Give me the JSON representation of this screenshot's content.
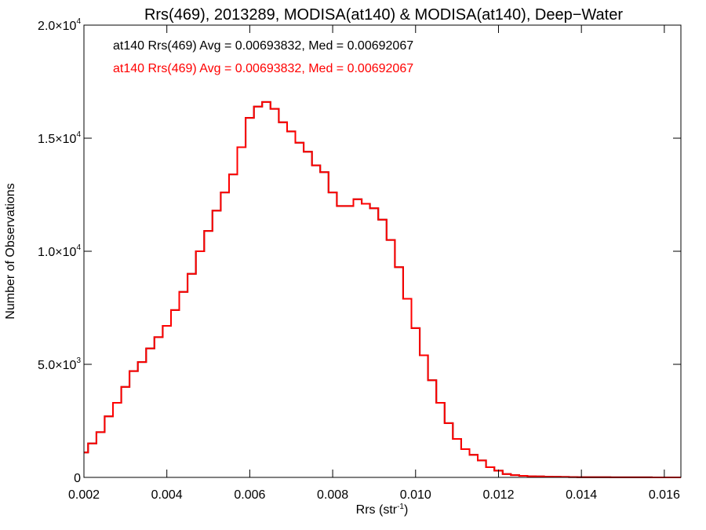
{
  "chart_data": {
    "type": "line",
    "title": "Rrs(469), 2013289, MODISA(at140) & MODISA(at140), Deep−Water",
    "xlabel": "Rrs (str",
    "xlabel_sup": "-1",
    "xlabel_end": ")",
    "ylabel": "Number of Observations",
    "xlim": [
      0.002,
      0.0164
    ],
    "ylim": [
      0,
      20000
    ],
    "xticks": [
      {
        "value": 0.002,
        "label": "0.002"
      },
      {
        "value": 0.004,
        "label": "0.004"
      },
      {
        "value": 0.006,
        "label": "0.006"
      },
      {
        "value": 0.008,
        "label": "0.008"
      },
      {
        "value": 0.01,
        "label": "0.010"
      },
      {
        "value": 0.012,
        "label": "0.012"
      },
      {
        "value": 0.014,
        "label": "0.014"
      },
      {
        "value": 0.016,
        "label": "0.016"
      }
    ],
    "yticks": [
      {
        "value": 0,
        "label": "0",
        "sup": ""
      },
      {
        "value": 5000,
        "label": "5.0×10",
        "sup": "3"
      },
      {
        "value": 10000,
        "label": "1.0×10",
        "sup": "4"
      },
      {
        "value": 15000,
        "label": "1.5×10",
        "sup": "4"
      },
      {
        "value": 20000,
        "label": "2.0×10",
        "sup": "4"
      }
    ],
    "annotations": [
      {
        "text": "at140 Rrs(469) Avg = 0.00693832, Med = 0.00692067",
        "color": "#000000"
      },
      {
        "text": "at140 Rrs(469) Avg = 0.00693832, Med = 0.00692067",
        "color": "#ff0000"
      }
    ],
    "series": [
      {
        "color": "#ff0000",
        "underlay_color": "#000000",
        "x": [
          0.002,
          0.0022,
          0.0024,
          0.0026,
          0.0028,
          0.003,
          0.0032,
          0.0034,
          0.0036,
          0.0038,
          0.004,
          0.0042,
          0.0044,
          0.0046,
          0.0048,
          0.005,
          0.0052,
          0.0054,
          0.0056,
          0.0058,
          0.006,
          0.0062,
          0.0064,
          0.0066,
          0.0068,
          0.007,
          0.0072,
          0.0074,
          0.0076,
          0.0078,
          0.008,
          0.0082,
          0.0084,
          0.0086,
          0.0088,
          0.009,
          0.0092,
          0.0094,
          0.0096,
          0.0098,
          0.01,
          0.0102,
          0.0104,
          0.0106,
          0.0108,
          0.011,
          0.0112,
          0.0114,
          0.0116,
          0.0118,
          0.012,
          0.0122,
          0.0124,
          0.0126,
          0.0128,
          0.013,
          0.0132,
          0.0134,
          0.0136,
          0.0138,
          0.014,
          0.0142,
          0.0144,
          0.0146,
          0.0148,
          0.015,
          0.0152,
          0.0154,
          0.0156,
          0.0158,
          0.016,
          0.0162,
          0.0164
        ],
        "y": [
          1100,
          1500,
          2000,
          2700,
          3300,
          4000,
          4700,
          5100,
          5700,
          6200,
          6700,
          7400,
          8200,
          9000,
          10000,
          10900,
          11800,
          12600,
          13400,
          14600,
          15900,
          16400,
          16600,
          16300,
          15700,
          15300,
          14800,
          14400,
          13800,
          13500,
          12600,
          12000,
          12000,
          12300,
          12100,
          11900,
          11400,
          10500,
          9300,
          7900,
          6600,
          5400,
          4300,
          3300,
          2400,
          1700,
          1250,
          1000,
          750,
          450,
          300,
          150,
          100,
          70,
          50,
          40,
          30,
          25,
          20,
          15,
          12,
          10,
          8,
          6,
          5,
          4,
          3,
          2,
          2,
          1,
          1,
          1,
          1
        ]
      }
    ]
  }
}
